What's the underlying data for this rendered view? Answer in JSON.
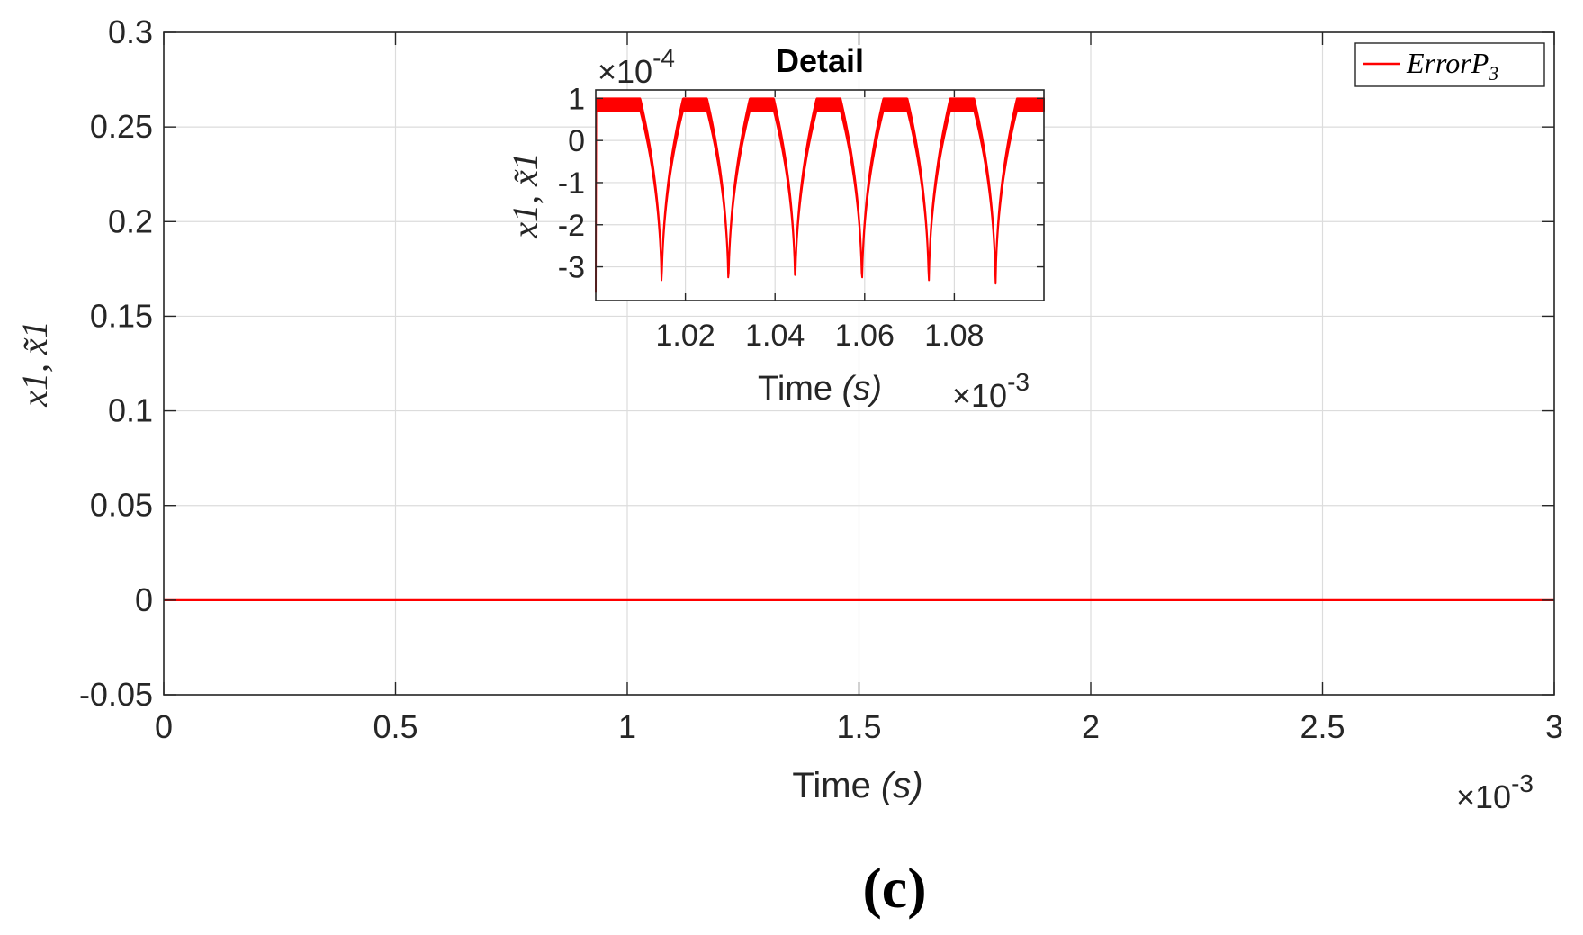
{
  "chart_data": [
    {
      "type": "line",
      "xlabel": "Time",
      "xlabel_unit": "(s)",
      "ylabel": "x1, x̃1",
      "x_multiplier": "×10",
      "x_multiplier_exp": "-3",
      "xlim": [
        0,
        3
      ],
      "ylim": [
        -0.05,
        0.3
      ],
      "xticks": [
        "0",
        "0.5",
        "1",
        "1.5",
        "2",
        "2.5",
        "3"
      ],
      "xtick_values": [
        0,
        0.5,
        1,
        1.5,
        2,
        2.5,
        3
      ],
      "yticks": [
        "0.3",
        "0.25",
        "0.2",
        "0.15",
        "0.1",
        "0.05",
        "0",
        "-0.05"
      ],
      "ytick_values": [
        0.3,
        0.25,
        0.2,
        0.15,
        0.1,
        0.05,
        0,
        -0.05
      ],
      "grid": true,
      "legend_position": "top-right",
      "series": [
        {
          "name": "ErrorP3",
          "name_base": "ErrorP",
          "name_sub": "3",
          "color": "#ff0000",
          "x": [
            0,
            0.5,
            1,
            1.5,
            2,
            2.5,
            3
          ],
          "y": [
            0,
            0,
            0,
            0,
            0,
            0,
            0
          ]
        }
      ]
    },
    {
      "type": "line",
      "title": "Detail",
      "xlabel": "Time",
      "xlabel_unit": "(s)",
      "ylabel": "x1, x̃1",
      "x_multiplier": "×10",
      "x_multiplier_exp": "-3",
      "y_multiplier": "×10",
      "y_multiplier_exp": "-4",
      "xlim": [
        1.0,
        1.1
      ],
      "ylim": [
        -3.8,
        1.2
      ],
      "xticks": [
        "1.02",
        "1.04",
        "1.06",
        "1.08"
      ],
      "xtick_values": [
        1.02,
        1.04,
        1.06,
        1.08
      ],
      "yticks": [
        "1",
        "0",
        "-1",
        "-2",
        "-3"
      ],
      "ytick_values": [
        1,
        0,
        -1,
        -2,
        -3
      ],
      "grid": true,
      "series": [
        {
          "color": "#ff0000",
          "period": 0.0149,
          "dip_centers": [
            1.0147,
            1.0296,
            1.0445,
            1.0594,
            1.0743,
            1.0892
          ],
          "dip_min": -3.8,
          "peak_high": 1.0,
          "peak_low": 0.7
        }
      ]
    }
  ],
  "caption": "(c)"
}
